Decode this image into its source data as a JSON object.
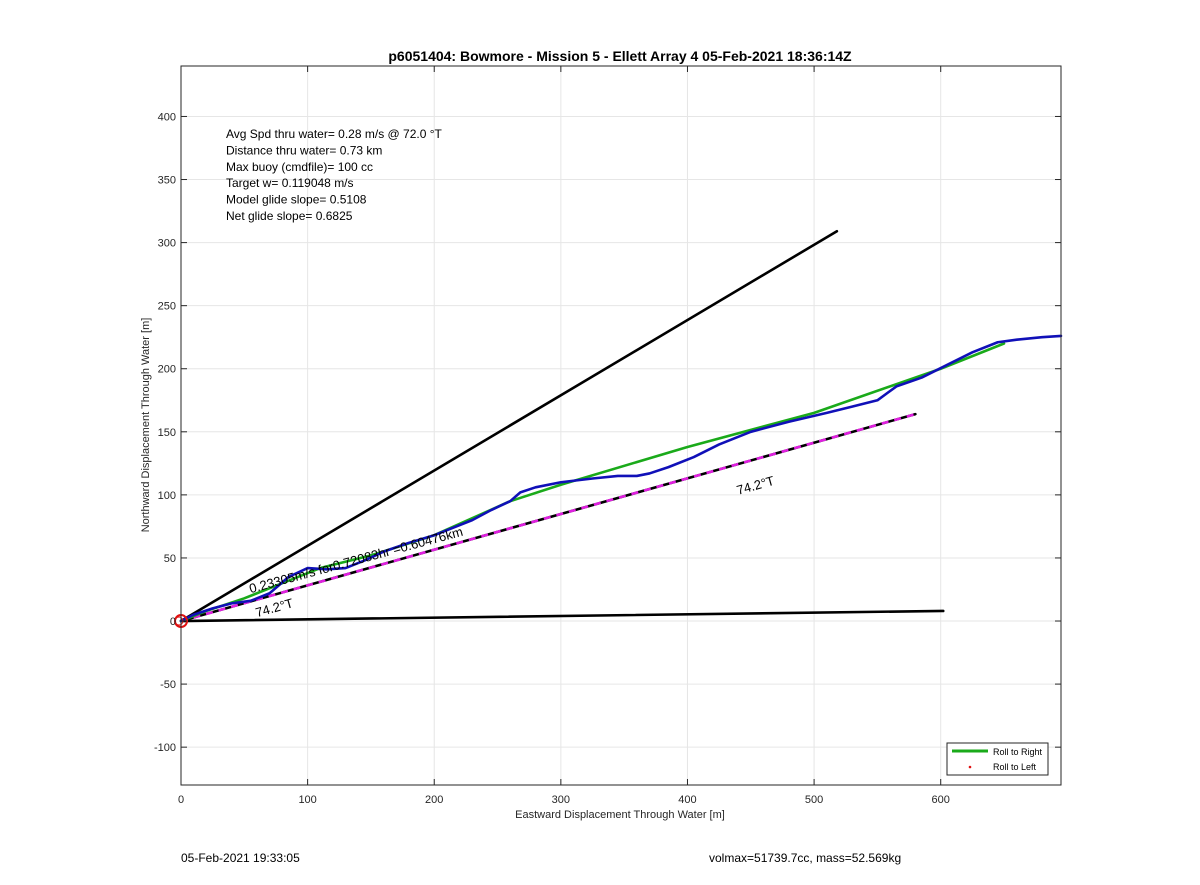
{
  "chart_data": {
    "type": "line",
    "title": "p6051404: Bowmore - Mission 5 - Ellett Array 4 05-Feb-2021 18:36:14Z",
    "xlabel": "Eastward Displacement Through Water [m]",
    "ylabel": "Northward Displacement Through Water [m]",
    "xlim": [
      0,
      695
    ],
    "ylim": [
      -130,
      440
    ],
    "xticks": [
      0,
      100,
      200,
      300,
      400,
      500,
      600
    ],
    "yticks": [
      -100,
      -50,
      0,
      50,
      100,
      150,
      200,
      250,
      300,
      350,
      400
    ],
    "grid": true,
    "legend_position": "bottom-right",
    "stats_lines": [
      "Avg Spd thru water=  0.28 m/s @  72.0 °T",
      "Distance thru water=  0.73 km",
      "Max buoy (cmdfile)= 100 cc",
      "Target w= 0.119048 m/s",
      "Model glide slope= 0.5108",
      "Net glide slope= 0.6825"
    ],
    "annotations": {
      "speed_label": "0.23305m/s for0.72083hr =0.60476km",
      "heading_label_1": "74.2°T",
      "heading_label_2": "74.2°T"
    },
    "series": [
      {
        "name": "Roll to Right",
        "color": "#1aaa1a",
        "x": [
          0,
          20,
          50,
          80,
          110,
          150,
          200,
          260,
          300,
          400,
          500,
          600,
          650
        ],
        "y": [
          0,
          8,
          18,
          30,
          42,
          52,
          68,
          95,
          108,
          138,
          165,
          200,
          220
        ]
      },
      {
        "name": "Roll to Left",
        "color": "#e01010",
        "x": [],
        "y": []
      },
      {
        "name": "",
        "color": "#1010b8",
        "x": [
          0,
          10,
          25,
          40,
          55,
          70,
          85,
          100,
          115,
          130,
          145,
          160,
          180,
          200,
          215,
          230,
          245,
          260,
          268,
          280,
          300,
          325,
          345,
          360,
          370,
          385,
          405,
          425,
          450,
          480,
          510,
          530,
          550,
          565,
          585,
          605,
          625,
          645,
          660,
          680,
          695
        ],
        "y": [
          0,
          5,
          10,
          14,
          16,
          22,
          35,
          42,
          41,
          42,
          48,
          55,
          62,
          68,
          74,
          80,
          88,
          95,
          102,
          106,
          110,
          113,
          115,
          115,
          117,
          122,
          130,
          140,
          150,
          158,
          165,
          170,
          175,
          186,
          193,
          203,
          213,
          221,
          223,
          225,
          226
        ]
      },
      {
        "name": "",
        "color": "#000000",
        "dashed_color": "#e020e0",
        "x": [
          0,
          580
        ],
        "y": [
          0,
          164
        ]
      },
      {
        "name": "",
        "color": "#000000",
        "x": [
          0,
          518
        ],
        "y": [
          0,
          309
        ]
      },
      {
        "name": "",
        "color": "#000000",
        "x": [
          0,
          602
        ],
        "y": [
          0,
          8
        ]
      }
    ],
    "start_marker": {
      "x": 0,
      "y": 0,
      "color": "#e01010"
    }
  },
  "footer": {
    "timestamp": "05-Feb-2021 19:33:05",
    "vol_mass": "volmax=51739.7cc, mass=52.569kg"
  }
}
